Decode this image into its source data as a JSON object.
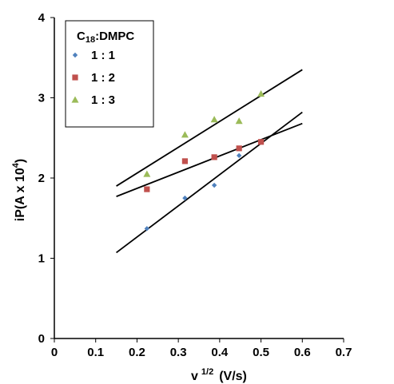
{
  "chart_data": {
    "type": "scatter",
    "xlabel": {
      "main": "v",
      "sup": "1/2",
      "unit": "(V/s)"
    },
    "ylabel": {
      "main": "iP(A x 10",
      "sup": "4",
      "tail": ")"
    },
    "xlim": [
      0,
      0.7
    ],
    "ylim": [
      0,
      4
    ],
    "x_ticks": [
      "0",
      "0.1",
      "0.2",
      "0.3",
      "0.4",
      "0.5",
      "0.6",
      "0.7"
    ],
    "y_ticks": [
      "0",
      "1",
      "2",
      "3",
      "4"
    ],
    "legend": {
      "title": {
        "prefix": "C",
        "sub": "18",
        "suffix": ":DMPC"
      },
      "position": "top-left"
    },
    "series": [
      {
        "name": "1 : 1",
        "marker": "diamond",
        "color": "#4F81BD",
        "points": [
          [
            0.224,
            1.37
          ],
          [
            0.316,
            1.75
          ],
          [
            0.387,
            1.91
          ],
          [
            0.447,
            2.28
          ]
        ],
        "fit": [
          [
            0.15,
            1.07
          ],
          [
            0.6,
            2.82
          ]
        ]
      },
      {
        "name": "1 : 2",
        "marker": "square",
        "color": "#C0504D",
        "points": [
          [
            0.224,
            1.86
          ],
          [
            0.316,
            2.21
          ],
          [
            0.387,
            2.26
          ],
          [
            0.447,
            2.37
          ],
          [
            0.5,
            2.45
          ]
        ],
        "fit": [
          [
            0.15,
            1.77
          ],
          [
            0.6,
            2.68
          ]
        ]
      },
      {
        "name": "1 : 3",
        "marker": "triangle",
        "color": "#9BBB59",
        "points": [
          [
            0.224,
            2.05
          ],
          [
            0.316,
            2.54
          ],
          [
            0.387,
            2.73
          ],
          [
            0.447,
            2.71
          ],
          [
            0.5,
            3.05
          ]
        ],
        "fit": [
          [
            0.15,
            1.9
          ],
          [
            0.6,
            3.35
          ]
        ]
      }
    ]
  }
}
